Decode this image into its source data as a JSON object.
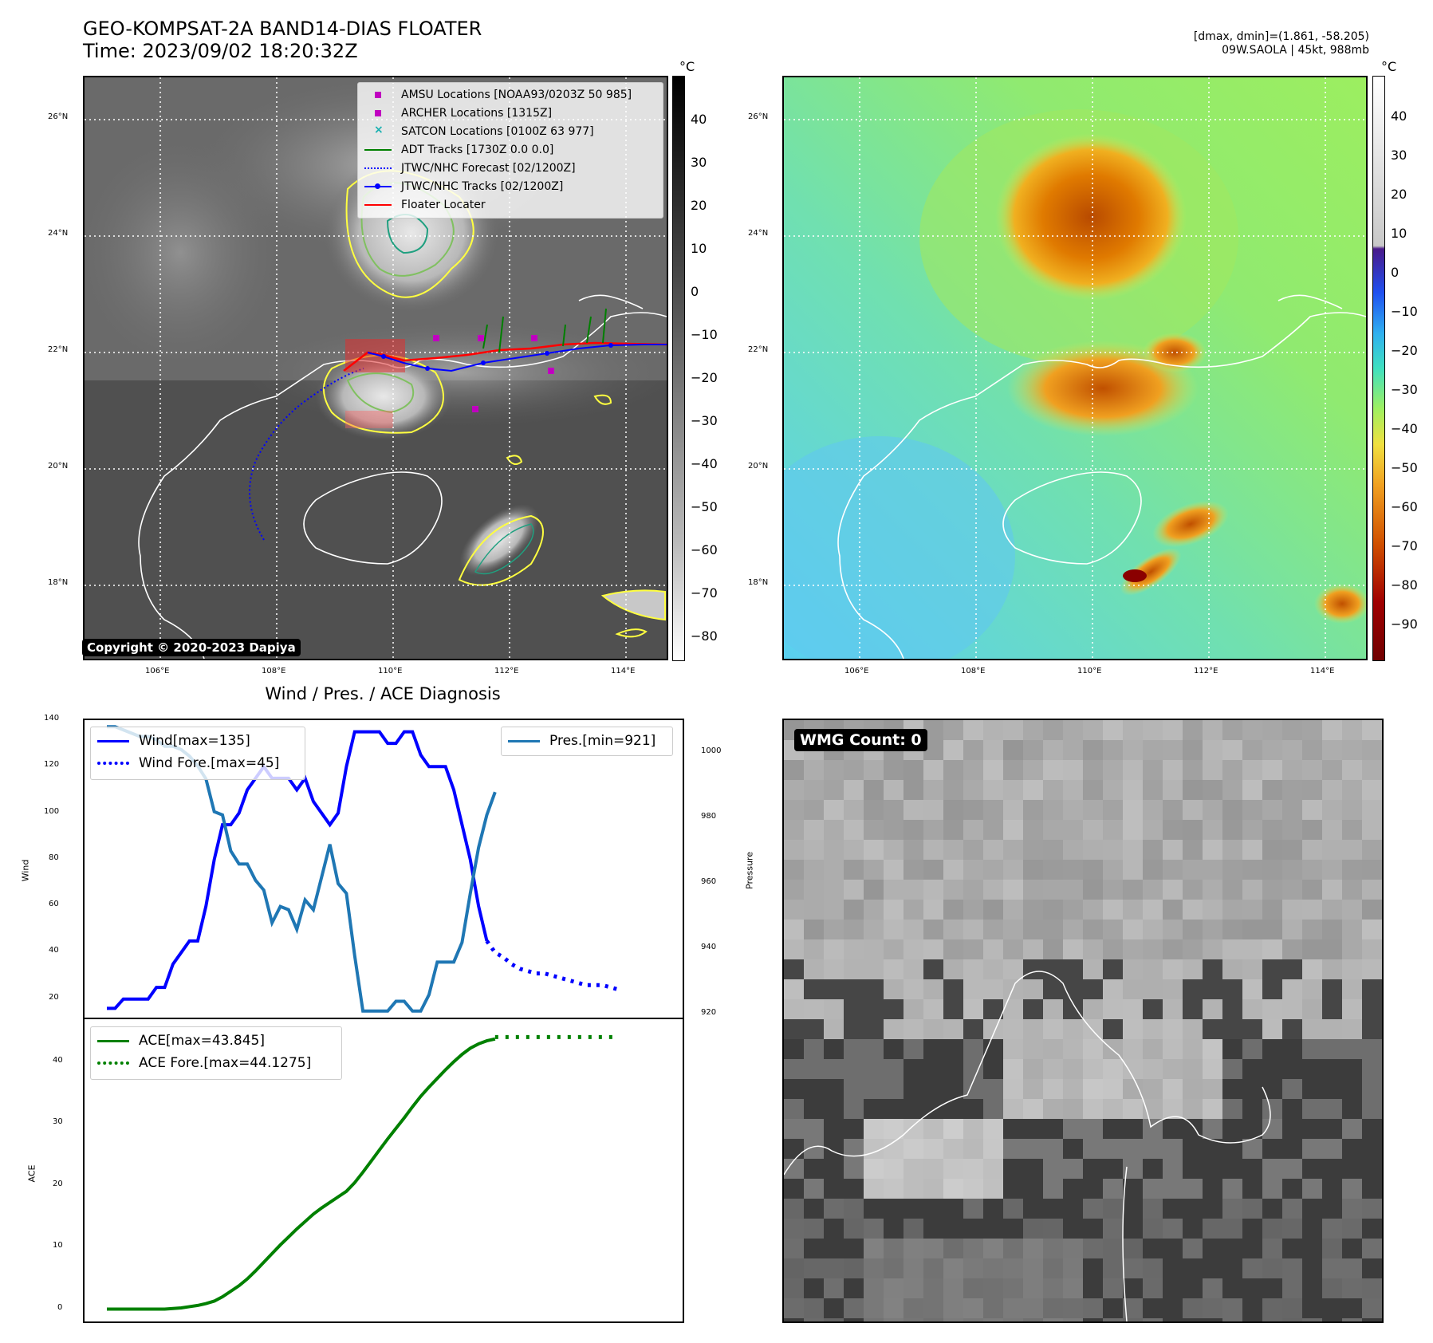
{
  "header": {
    "title_line1": "GEO-KOMPSAT-2A BAND14-DIAS FLOATER",
    "title_line2": "Time: 2023/09/02 18:20:32Z",
    "right_line1": "[dmax, dmin]=(1.861, -58.205)",
    "right_line2": "09W.SAOLA | 45kt, 988mb"
  },
  "map_left": {
    "lat_ticks": [
      "26°N",
      "24°N",
      "22°N",
      "20°N",
      "18°N"
    ],
    "lon_ticks": [
      "106°E",
      "108°E",
      "110°E",
      "112°E",
      "114°E"
    ],
    "colorbar_unit": "°C",
    "colorbar_ticks": [
      "40",
      "30",
      "20",
      "10",
      "0",
      "−10",
      "−20",
      "−30",
      "−40",
      "−50",
      "−60",
      "−70",
      "−80"
    ],
    "copyright": "Copyright © 2020-2023 Dapiya",
    "legend": [
      {
        "label": "AMSU Locations [NOAA93/0203Z 50 985]",
        "color": "#c000c0",
        "kind": "square"
      },
      {
        "label": "ARCHER Locations [1315Z]",
        "color": "#c000c0",
        "kind": "square"
      },
      {
        "label": "SATCON Locations [0100Z 63 977]",
        "color": "#17b0b0",
        "kind": "x"
      },
      {
        "label": "ADT Tracks [1730Z 0.0 0.0]",
        "color": "#008000",
        "kind": "line"
      },
      {
        "label": "JTWC/NHC Forecast [02/1200Z]",
        "color": "#0000ff",
        "kind": "dotted"
      },
      {
        "label": "JTWC/NHC Tracks [02/1200Z]",
        "color": "#0000ff",
        "kind": "linedot"
      },
      {
        "label": "Floater Locater",
        "color": "#ff0000",
        "kind": "line"
      }
    ]
  },
  "map_right": {
    "lat_ticks": [
      "26°N",
      "24°N",
      "22°N",
      "20°N",
      "18°N"
    ],
    "lon_ticks": [
      "106°E",
      "108°E",
      "110°E",
      "112°E",
      "114°E"
    ],
    "colorbar_unit": "°C",
    "colorbar_ticks": [
      "40",
      "30",
      "20",
      "10",
      "0",
      "−10",
      "−20",
      "−30",
      "−40",
      "−50",
      "−60",
      "−70",
      "−80",
      "−90"
    ]
  },
  "diagnosis": {
    "title": "Wind / Pres. / ACE Diagnosis",
    "wind_ylabel": "Wind",
    "pressure_ylabel": "Pressure",
    "ace_ylabel": "ACE",
    "legend_wind": "Wind[max=135]",
    "legend_wind_fore": "Wind Fore.[max=45]",
    "legend_pres": "Pres.[min=921]",
    "legend_ace": "ACE[max=43.845]",
    "legend_ace_fore": "ACE Fore.[max=44.1275]",
    "wind_ticks": [
      "140",
      "120",
      "100",
      "80",
      "60",
      "40",
      "20"
    ],
    "pres_ticks": [
      "1000",
      "980",
      "960",
      "940",
      "920"
    ],
    "ace_ticks": [
      "40",
      "30",
      "20",
      "10",
      "0"
    ]
  },
  "wmg": {
    "label": "WMG Count: 0"
  },
  "chart_data": [
    {
      "type": "line",
      "title": "Wind / Pres. / ACE Diagnosis",
      "xlabel": "",
      "ylabel": "Wind",
      "y2label": "Pressure",
      "ylim": [
        12,
        140
      ],
      "y2lim": [
        919,
        1010
      ],
      "x": [
        0,
        1,
        2,
        3,
        4,
        5,
        6,
        7,
        8,
        9,
        10,
        11,
        12,
        13,
        14,
        15,
        16,
        17,
        18,
        19,
        20,
        21,
        22,
        23,
        24,
        25,
        26,
        27,
        28,
        29,
        30,
        31,
        32,
        33,
        34,
        35,
        36,
        37,
        38,
        39,
        40,
        41,
        42,
        43,
        44,
        45,
        46,
        47,
        48,
        49,
        50,
        51,
        52,
        53,
        54,
        55,
        56,
        57,
        58,
        59,
        60,
        61,
        62,
        63,
        64,
        65,
        66,
        67
      ],
      "series": [
        {
          "name": "Wind[max=135]",
          "axis": "left",
          "color": "#0000ff",
          "values": [
            16,
            16,
            20,
            20,
            20,
            20,
            25,
            25,
            35,
            40,
            45,
            45,
            60,
            80,
            95,
            95,
            100,
            110,
            115,
            120,
            115,
            115,
            115,
            110,
            115,
            105,
            100,
            95,
            100,
            120,
            135,
            135,
            135,
            135,
            130,
            130,
            135,
            135,
            125,
            120,
            120,
            120,
            110,
            95,
            80,
            60,
            45,
            null,
            null,
            null,
            null,
            null,
            null,
            null,
            null,
            null,
            null,
            null,
            null,
            null,
            null,
            null,
            null,
            null,
            null,
            null,
            null,
            null
          ]
        },
        {
          "name": "Wind Fore.[max=45]",
          "axis": "left",
          "color": "#0000ff",
          "dashed": true,
          "values": [
            null,
            null,
            null,
            null,
            null,
            null,
            null,
            null,
            null,
            null,
            null,
            null,
            null,
            null,
            null,
            null,
            null,
            null,
            null,
            null,
            null,
            null,
            null,
            null,
            null,
            null,
            null,
            null,
            null,
            null,
            null,
            null,
            null,
            null,
            null,
            null,
            null,
            null,
            null,
            null,
            null,
            null,
            null,
            null,
            null,
            null,
            45,
            40,
            38,
            35,
            33,
            32,
            31,
            31,
            30,
            29,
            28,
            27,
            26,
            26,
            26,
            25,
            24,
            null,
            null,
            null,
            null,
            null
          ]
        },
        {
          "name": "Pres.[min=921]",
          "axis": "right",
          "color": "#1f77b4",
          "values": [
            1008,
            1008,
            1007,
            1006,
            1005,
            1005,
            1004,
            1002,
            1002,
            1001,
            999,
            996,
            992,
            982,
            981,
            970,
            966,
            966,
            961,
            958,
            948,
            953,
            952,
            946,
            955,
            952,
            962,
            972,
            960,
            957,
            938,
            921,
            921,
            921,
            921,
            924,
            924,
            921,
            921,
            926,
            936,
            936,
            936,
            942,
            957,
            971,
            981,
            988,
            null,
            null,
            null,
            null,
            null,
            null,
            null,
            null,
            null,
            null,
            null,
            null,
            null,
            null,
            null,
            null,
            null,
            null,
            null,
            null
          ]
        }
      ]
    },
    {
      "type": "line",
      "ylabel": "ACE",
      "ylim": [
        -2,
        47
      ],
      "x": [
        0,
        1,
        2,
        3,
        4,
        5,
        6,
        7,
        8,
        9,
        10,
        11,
        12,
        13,
        14,
        15,
        16,
        17,
        18,
        19,
        20,
        21,
        22,
        23,
        24,
        25,
        26,
        27,
        28,
        29,
        30,
        31,
        32,
        33,
        34,
        35,
        36,
        37,
        38,
        39,
        40,
        41,
        42,
        43,
        44,
        45,
        46,
        47,
        48,
        49,
        50,
        51,
        52,
        53,
        54,
        55,
        56,
        57,
        58,
        59,
        60,
        61,
        62,
        63,
        64,
        65,
        66,
        67
      ],
      "series": [
        {
          "name": "ACE[max=43.845]",
          "color": "#008000",
          "values": [
            0,
            0,
            0,
            0,
            0,
            0,
            0,
            0,
            0.1,
            0.2,
            0.4,
            0.6,
            0.9,
            1.3,
            2.0,
            2.9,
            3.8,
            4.9,
            6.2,
            7.6,
            9.0,
            10.4,
            11.7,
            13.0,
            14.2,
            15.4,
            16.4,
            17.3,
            18.2,
            19.1,
            20.5,
            22.2,
            24.0,
            25.8,
            27.6,
            29.3,
            31.0,
            32.8,
            34.5,
            36.0,
            37.4,
            38.8,
            40.1,
            41.3,
            42.3,
            43.0,
            43.5,
            43.8,
            null,
            null,
            null,
            null,
            null,
            null,
            null,
            null,
            null,
            null,
            null,
            null,
            null,
            null,
            null,
            null,
            null,
            null,
            null,
            null
          ]
        },
        {
          "name": "ACE Fore.[max=44.1275]",
          "color": "#008000",
          "dashed": true,
          "values": [
            null,
            null,
            null,
            null,
            null,
            null,
            null,
            null,
            null,
            null,
            null,
            null,
            null,
            null,
            null,
            null,
            null,
            null,
            null,
            null,
            null,
            null,
            null,
            null,
            null,
            null,
            null,
            null,
            null,
            null,
            null,
            null,
            null,
            null,
            null,
            null,
            null,
            null,
            null,
            null,
            null,
            null,
            null,
            null,
            null,
            null,
            null,
            44.1,
            44.1,
            44.1,
            44.1,
            44.1,
            44.1,
            44.1,
            44.1,
            44.1,
            44.1,
            44.1,
            44.1,
            44.1,
            44.1,
            44.1,
            44.1,
            null,
            null,
            null,
            null,
            null
          ]
        }
      ]
    }
  ]
}
